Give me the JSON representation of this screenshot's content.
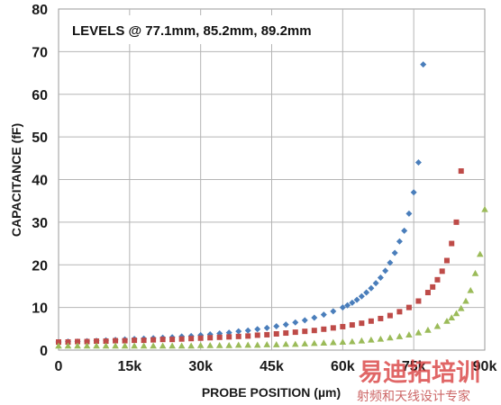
{
  "chart_data": {
    "type": "scatter",
    "title": "",
    "annotation": "LEVELS @ 77.1mm, 85.2mm, 89.2mm",
    "xlabel": "PROBE POSITION (µm)",
    "ylabel": "CAPACITANCE (fF)",
    "xlim": [
      0,
      90000
    ],
    "ylim": [
      0,
      80
    ],
    "x_ticks": [
      0,
      15000,
      30000,
      45000,
      60000,
      75000,
      90000
    ],
    "x_tick_labels": [
      "0",
      "15k",
      "30k",
      "45k",
      "60k",
      "75k",
      "90k"
    ],
    "y_ticks": [
      0,
      10,
      20,
      30,
      40,
      50,
      60,
      70,
      80
    ],
    "y_tick_labels": [
      "0",
      "10",
      "20",
      "30",
      "40",
      "50",
      "60",
      "70",
      "80"
    ],
    "grid": true,
    "legend": "none",
    "series": [
      {
        "color": "#4a7ebb",
        "marker": "diamond",
        "x": [
          0,
          2000,
          4000,
          6000,
          8000,
          10000,
          12000,
          14000,
          16000,
          18000,
          20000,
          22000,
          24000,
          26000,
          28000,
          30000,
          32000,
          34000,
          36000,
          38000,
          40000,
          42000,
          44000,
          46000,
          48000,
          50000,
          52000,
          54000,
          56000,
          58000,
          60000,
          61000,
          62000,
          63000,
          64000,
          65000,
          66000,
          67000,
          68000,
          69000,
          70000,
          71000,
          72000,
          73000,
          74000,
          75000,
          76000,
          77000
        ],
        "y": [
          1.9,
          2.0,
          2.0,
          2.1,
          2.2,
          2.3,
          2.4,
          2.5,
          2.6,
          2.7,
          2.8,
          2.9,
          3.0,
          3.2,
          3.3,
          3.5,
          3.7,
          3.9,
          4.1,
          4.4,
          4.6,
          4.9,
          5.2,
          5.6,
          6.0,
          6.5,
          7.0,
          7.6,
          8.3,
          9.1,
          10.0,
          10.5,
          11.1,
          11.8,
          12.6,
          13.5,
          14.5,
          15.7,
          17.0,
          18.6,
          20.5,
          22.8,
          25.5,
          28.0,
          32.0,
          37.0,
          44.0,
          67.0
        ]
      },
      {
        "color": "#be4b48",
        "marker": "square",
        "x": [
          0,
          2000,
          4000,
          6000,
          8000,
          10000,
          12000,
          14000,
          16000,
          18000,
          20000,
          22000,
          24000,
          26000,
          28000,
          30000,
          32000,
          34000,
          36000,
          38000,
          40000,
          42000,
          44000,
          46000,
          48000,
          50000,
          52000,
          54000,
          56000,
          58000,
          60000,
          62000,
          64000,
          66000,
          68000,
          70000,
          72000,
          74000,
          76000,
          78000,
          79000,
          80000,
          81000,
          82000,
          83000,
          84000,
          85000
        ],
        "y": [
          1.9,
          1.9,
          2.0,
          2.0,
          2.1,
          2.1,
          2.2,
          2.2,
          2.3,
          2.3,
          2.4,
          2.5,
          2.5,
          2.6,
          2.7,
          2.8,
          2.9,
          3.0,
          3.1,
          3.2,
          3.3,
          3.5,
          3.6,
          3.8,
          4.0,
          4.2,
          4.4,
          4.6,
          4.9,
          5.2,
          5.5,
          5.9,
          6.3,
          6.8,
          7.4,
          8.1,
          9.0,
          10.0,
          11.5,
          13.5,
          14.8,
          16.5,
          18.5,
          21.0,
          25.0,
          30.0,
          42.0
        ]
      },
      {
        "color": "#9bbb59",
        "marker": "triangle",
        "x": [
          0,
          2000,
          4000,
          6000,
          8000,
          10000,
          12000,
          14000,
          16000,
          18000,
          20000,
          22000,
          24000,
          26000,
          28000,
          30000,
          32000,
          34000,
          36000,
          38000,
          40000,
          42000,
          44000,
          46000,
          48000,
          50000,
          52000,
          54000,
          56000,
          58000,
          60000,
          62000,
          64000,
          66000,
          68000,
          70000,
          72000,
          74000,
          76000,
          78000,
          80000,
          82000,
          83000,
          84000,
          85000,
          86000,
          87000,
          88000,
          89000,
          90000
        ],
        "y": [
          1.0,
          1.0,
          1.0,
          1.0,
          1.0,
          1.0,
          1.0,
          1.0,
          1.0,
          1.0,
          1.0,
          1.0,
          1.0,
          1.0,
          1.0,
          1.1,
          1.1,
          1.1,
          1.1,
          1.2,
          1.2,
          1.2,
          1.3,
          1.3,
          1.4,
          1.4,
          1.5,
          1.6,
          1.7,
          1.8,
          1.9,
          2.0,
          2.2,
          2.4,
          2.6,
          2.9,
          3.2,
          3.6,
          4.1,
          4.7,
          5.6,
          6.8,
          7.6,
          8.6,
          9.8,
          11.5,
          14.0,
          18.0,
          22.5,
          33.0
        ]
      }
    ]
  },
  "watermark": {
    "main": "易迪拓培训",
    "sub": "射频和天线设计专家"
  }
}
